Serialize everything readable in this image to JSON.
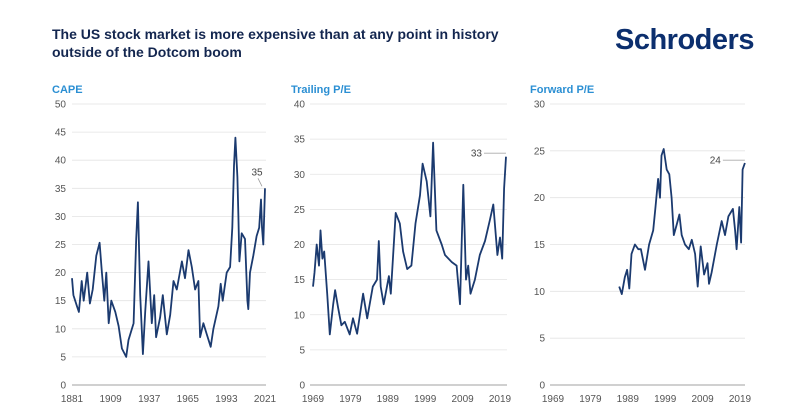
{
  "title": "The US stock market is more expensive than at any point in history outside of the Dotcom boom",
  "logo": "Schroders",
  "colors": {
    "line": "#1b3a6f",
    "title": "#13264f",
    "subtitle": "#2b8fd3",
    "grid": "#e3e3e3",
    "logo": "#0c2f6e"
  },
  "chart_data": [
    {
      "type": "line",
      "title": "CAPE",
      "ylim": [
        0,
        50
      ],
      "yticks": [
        0,
        5,
        10,
        15,
        20,
        25,
        30,
        35,
        40,
        45,
        50
      ],
      "xlim": [
        1881,
        2021
      ],
      "xticks": [
        1881,
        1909,
        1937,
        1965,
        1993,
        2021
      ],
      "grid": true,
      "annotation": {
        "x": 2021,
        "y": 35,
        "label": "35"
      },
      "points": [
        [
          1881,
          19
        ],
        [
          1882,
          16
        ],
        [
          1884.6,
          14
        ],
        [
          1886,
          13
        ],
        [
          1888,
          18.5
        ],
        [
          1889.5,
          15
        ],
        [
          1892,
          20
        ],
        [
          1894,
          14.5
        ],
        [
          1896,
          17
        ],
        [
          1898.6,
          23
        ],
        [
          1901,
          25.3
        ],
        [
          1902.7,
          20
        ],
        [
          1904.4,
          15
        ],
        [
          1905.9,
          20
        ],
        [
          1907.6,
          11
        ],
        [
          1909.5,
          15
        ],
        [
          1912.4,
          13
        ],
        [
          1914.8,
          10.5
        ],
        [
          1917.2,
          6.5
        ],
        [
          1920.3,
          5
        ],
        [
          1922,
          8
        ],
        [
          1925.7,
          11
        ],
        [
          1927.6,
          26
        ],
        [
          1928.8,
          32.5
        ],
        [
          1930.5,
          16
        ],
        [
          1932.4,
          5.5
        ],
        [
          1934.1,
          13
        ],
        [
          1936.5,
          22
        ],
        [
          1938.9,
          11
        ],
        [
          1940.6,
          16
        ],
        [
          1942,
          8.5
        ],
        [
          1944.9,
          12
        ],
        [
          1946.9,
          16
        ],
        [
          1949.8,
          9
        ],
        [
          1952.2,
          12.5
        ],
        [
          1954.6,
          18.5
        ],
        [
          1957,
          17
        ],
        [
          1960.7,
          22
        ],
        [
          1963,
          19
        ],
        [
          1965.5,
          24
        ],
        [
          1967.9,
          21
        ],
        [
          1970.3,
          17
        ],
        [
          1972.7,
          18.5
        ],
        [
          1973.9,
          8.5
        ],
        [
          1976.3,
          11
        ],
        [
          1978.8,
          9
        ],
        [
          1981.6,
          6.8
        ],
        [
          1983.6,
          10
        ],
        [
          1987.2,
          14
        ],
        [
          1988.9,
          18
        ],
        [
          1990.3,
          15
        ],
        [
          1993.2,
          20
        ],
        [
          1995.7,
          21
        ],
        [
          1997.3,
          28
        ],
        [
          1998.5,
          39
        ],
        [
          1999.5,
          44
        ],
        [
          2001,
          37
        ],
        [
          2001.7,
          30
        ],
        [
          2002.4,
          22
        ],
        [
          2004.1,
          27
        ],
        [
          2006.5,
          26
        ],
        [
          2008.2,
          15
        ],
        [
          2008.9,
          13.5
        ],
        [
          2010.1,
          20
        ],
        [
          2012.5,
          23
        ],
        [
          2014.9,
          26.5
        ],
        [
          2016.8,
          28
        ],
        [
          2018.1,
          33
        ],
        [
          2018.8,
          28
        ],
        [
          2019.8,
          25
        ],
        [
          2021,
          35
        ]
      ]
    },
    {
      "type": "line",
      "title": "Trailing P/E",
      "ylim": [
        0,
        40
      ],
      "yticks": [
        0,
        5,
        10,
        15,
        20,
        25,
        30,
        35,
        40
      ],
      "xlim": [
        1969,
        2020.6
      ],
      "xticks": [
        1969,
        1979,
        1989,
        1999,
        2009,
        2019
      ],
      "grid": true,
      "annotation": {
        "x": 2020.6,
        "y": 33,
        "label": "33"
      },
      "points": [
        [
          1969,
          14
        ],
        [
          1969.4,
          16
        ],
        [
          1970,
          20
        ],
        [
          1970.6,
          17
        ],
        [
          1971,
          22
        ],
        [
          1971.5,
          18
        ],
        [
          1972,
          19
        ],
        [
          1972.8,
          13
        ],
        [
          1973.5,
          7.2
        ],
        [
          1974.4,
          11.5
        ],
        [
          1974.9,
          13.5
        ],
        [
          1975.7,
          11
        ],
        [
          1976.6,
          8.5
        ],
        [
          1977.5,
          9
        ],
        [
          1978.8,
          7.2
        ],
        [
          1979.7,
          9.5
        ],
        [
          1980.8,
          7.3
        ],
        [
          1982.4,
          13
        ],
        [
          1983.5,
          9.5
        ],
        [
          1985,
          14
        ],
        [
          1986.1,
          15
        ],
        [
          1986.6,
          20.5
        ],
        [
          1987.1,
          14
        ],
        [
          1987.9,
          11.5
        ],
        [
          1989.3,
          15.5
        ],
        [
          1989.8,
          13
        ],
        [
          1991.1,
          24.5
        ],
        [
          1992.2,
          23
        ],
        [
          1993.1,
          19
        ],
        [
          1994.2,
          16.5
        ],
        [
          1995.3,
          17
        ],
        [
          1996.4,
          23
        ],
        [
          1997.6,
          27
        ],
        [
          1998.3,
          31.5
        ],
        [
          1999.4,
          29
        ],
        [
          2000.4,
          24
        ],
        [
          2001.1,
          34.5
        ],
        [
          2002,
          22
        ],
        [
          2003.4,
          20
        ],
        [
          2004.3,
          18.5
        ],
        [
          2006.1,
          17.5
        ],
        [
          2007.4,
          17
        ],
        [
          2008.3,
          11.5
        ],
        [
          2009.2,
          28.5
        ],
        [
          2009.9,
          15
        ],
        [
          2010.5,
          17
        ],
        [
          2011.1,
          13
        ],
        [
          2012.3,
          15
        ],
        [
          2013.6,
          18.5
        ],
        [
          2015,
          20.5
        ],
        [
          2016.3,
          23.5
        ],
        [
          2017.2,
          25.7
        ],
        [
          2018.3,
          18.5
        ],
        [
          2019,
          21
        ],
        [
          2019.6,
          18
        ],
        [
          2020.1,
          28
        ],
        [
          2020.6,
          32.5
        ]
      ]
    },
    {
      "type": "line",
      "title": "Forward P/E",
      "ylim": [
        0,
        30
      ],
      "yticks": [
        0,
        5,
        10,
        15,
        20,
        25,
        30
      ],
      "xlim": [
        1969,
        2020.6
      ],
      "xticks": [
        1969,
        1979,
        1989,
        1999,
        2009,
        2019
      ],
      "grid": true,
      "annotation": {
        "x": 2020.3,
        "y": 24,
        "label": "24"
      },
      "points": [
        [
          1986.7,
          10.5
        ],
        [
          1987.4,
          9.7
        ],
        [
          1988.2,
          11.5
        ],
        [
          1988.8,
          12.3
        ],
        [
          1989.4,
          10.3
        ],
        [
          1990,
          14
        ],
        [
          1990.9,
          15
        ],
        [
          1991.8,
          14.5
        ],
        [
          1992.5,
          14.5
        ],
        [
          1993.6,
          12.3
        ],
        [
          1994.7,
          15
        ],
        [
          1995.8,
          16.5
        ],
        [
          1996.4,
          19
        ],
        [
          1997.1,
          22
        ],
        [
          1997.6,
          20
        ],
        [
          1998,
          24.5
        ],
        [
          1998.6,
          25.2
        ],
        [
          1999.4,
          23
        ],
        [
          2000.1,
          22.5
        ],
        [
          2000.7,
          20
        ],
        [
          2001.3,
          16
        ],
        [
          2002,
          17
        ],
        [
          2002.8,
          18.2
        ],
        [
          2003.4,
          16
        ],
        [
          2004.3,
          15
        ],
        [
          2005.3,
          14.5
        ],
        [
          2006.1,
          15.5
        ],
        [
          2007,
          14
        ],
        [
          2007.7,
          10.5
        ],
        [
          2008.5,
          14.8
        ],
        [
          2009.4,
          11.8
        ],
        [
          2010.3,
          13
        ],
        [
          2010.7,
          10.8
        ],
        [
          2011.4,
          12
        ],
        [
          2012.8,
          15
        ],
        [
          2014.1,
          17.5
        ],
        [
          2015,
          16
        ],
        [
          2015.9,
          18
        ],
        [
          2017.1,
          18.8
        ],
        [
          2017.7,
          16.5
        ],
        [
          2018.1,
          14.5
        ],
        [
          2018.8,
          19
        ],
        [
          2019.3,
          15.2
        ],
        [
          2019.7,
          23
        ],
        [
          2020.3,
          23.7
        ]
      ]
    }
  ]
}
